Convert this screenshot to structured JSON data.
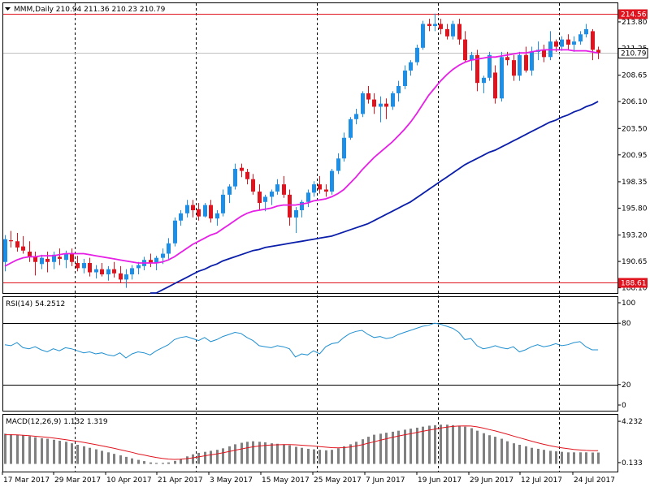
{
  "colors": {
    "background": "#ffffff",
    "frame": "#000000",
    "bull": "#1e8fe6",
    "bear": "#e0141e",
    "ma_fast": "#e61ee6",
    "ma_slow": "#0a1eaa",
    "hline": "#e0141e",
    "rsi": "#1e8fd0",
    "macd_hist": "#808080",
    "macd_signal": "#e0141e",
    "grid_dash": "#000000",
    "price_tag_bg": "#ffffff"
  },
  "chart_data": [
    {
      "type": "candlestick",
      "title": "MMM,Daily  210.94 211.36 210.23 210.79",
      "symbol": "MMM,Daily",
      "ohlc_header": "210.94 211.36 210.23 210.79",
      "ylim": [
        187.6,
        215.6
      ],
      "y_ticks": [
        "213.80",
        "211.25",
        "208.65",
        "206.10",
        "203.50",
        "200.95",
        "198.35",
        "195.80",
        "193.20",
        "190.65",
        "188.10"
      ],
      "y_tick_values": [
        213.8,
        211.25,
        208.65,
        206.1,
        203.5,
        200.95,
        198.35,
        195.8,
        193.2,
        190.65,
        188.1
      ],
      "hlines": [
        {
          "value": 214.56,
          "label": "214.56",
          "style": "red-box"
        },
        {
          "value": 188.61,
          "label": "188.61",
          "style": "red-box"
        }
      ],
      "current_price": {
        "value": 210.79,
        "label": "210.79"
      },
      "candles": [
        {
          "o": 190.6,
          "h": 193.2,
          "l": 189.7,
          "c": 192.8
        },
        {
          "o": 192.7,
          "h": 193.6,
          "l": 192.0,
          "c": 192.6
        },
        {
          "o": 192.6,
          "h": 193.4,
          "l": 191.6,
          "c": 192.0
        },
        {
          "o": 192.1,
          "h": 193.1,
          "l": 191.4,
          "c": 191.7
        },
        {
          "o": 191.6,
          "h": 192.6,
          "l": 190.6,
          "c": 191.1
        },
        {
          "o": 191.1,
          "h": 191.6,
          "l": 189.3,
          "c": 190.6
        },
        {
          "o": 190.4,
          "h": 191.3,
          "l": 189.9,
          "c": 191.0
        },
        {
          "o": 190.9,
          "h": 191.6,
          "l": 189.6,
          "c": 190.6
        },
        {
          "o": 190.6,
          "h": 191.6,
          "l": 189.9,
          "c": 191.3
        },
        {
          "o": 191.1,
          "h": 191.9,
          "l": 190.3,
          "c": 190.9
        },
        {
          "o": 190.8,
          "h": 191.7,
          "l": 190.0,
          "c": 191.4
        },
        {
          "o": 191.4,
          "h": 191.9,
          "l": 190.2,
          "c": 190.6
        },
        {
          "o": 190.5,
          "h": 191.2,
          "l": 189.7,
          "c": 190.0
        },
        {
          "o": 190.0,
          "h": 190.9,
          "l": 189.5,
          "c": 190.5
        },
        {
          "o": 190.5,
          "h": 191.0,
          "l": 189.2,
          "c": 189.6
        },
        {
          "o": 189.6,
          "h": 190.3,
          "l": 189.0,
          "c": 189.9
        },
        {
          "o": 189.9,
          "h": 190.5,
          "l": 189.2,
          "c": 189.4
        },
        {
          "o": 189.4,
          "h": 190.2,
          "l": 188.8,
          "c": 189.9
        },
        {
          "o": 189.9,
          "h": 190.6,
          "l": 189.1,
          "c": 189.5
        },
        {
          "o": 189.5,
          "h": 190.2,
          "l": 188.6,
          "c": 188.9
        },
        {
          "o": 188.9,
          "h": 189.9,
          "l": 188.1,
          "c": 189.4
        },
        {
          "o": 189.4,
          "h": 190.3,
          "l": 188.9,
          "c": 190.0
        },
        {
          "o": 190.0,
          "h": 190.6,
          "l": 189.4,
          "c": 190.3
        },
        {
          "o": 190.2,
          "h": 191.1,
          "l": 189.8,
          "c": 190.8
        },
        {
          "o": 190.8,
          "h": 191.4,
          "l": 190.1,
          "c": 190.5
        },
        {
          "o": 190.5,
          "h": 191.2,
          "l": 189.8,
          "c": 191.0
        },
        {
          "o": 191.0,
          "h": 191.9,
          "l": 190.4,
          "c": 191.4
        },
        {
          "o": 191.4,
          "h": 192.9,
          "l": 190.9,
          "c": 192.4
        },
        {
          "o": 192.4,
          "h": 194.9,
          "l": 192.1,
          "c": 194.6
        },
        {
          "o": 194.6,
          "h": 195.6,
          "l": 194.1,
          "c": 195.3
        },
        {
          "o": 195.3,
          "h": 196.6,
          "l": 194.9,
          "c": 196.1
        },
        {
          "o": 196.1,
          "h": 196.6,
          "l": 194.9,
          "c": 195.6
        },
        {
          "o": 195.7,
          "h": 196.3,
          "l": 194.6,
          "c": 195.0
        },
        {
          "o": 195.0,
          "h": 196.3,
          "l": 194.9,
          "c": 196.1
        },
        {
          "o": 196.1,
          "h": 196.6,
          "l": 194.4,
          "c": 194.8
        },
        {
          "o": 194.8,
          "h": 195.6,
          "l": 194.1,
          "c": 195.3
        },
        {
          "o": 195.3,
          "h": 197.6,
          "l": 195.0,
          "c": 197.1
        },
        {
          "o": 197.1,
          "h": 198.1,
          "l": 196.3,
          "c": 197.9
        },
        {
          "o": 197.9,
          "h": 200.1,
          "l": 197.6,
          "c": 199.6
        },
        {
          "o": 199.7,
          "h": 200.1,
          "l": 198.8,
          "c": 199.4
        },
        {
          "o": 199.3,
          "h": 199.6,
          "l": 198.1,
          "c": 198.6
        },
        {
          "o": 198.6,
          "h": 199.1,
          "l": 197.1,
          "c": 197.4
        },
        {
          "o": 197.4,
          "h": 198.1,
          "l": 195.6,
          "c": 196.3
        },
        {
          "o": 196.4,
          "h": 197.1,
          "l": 195.5,
          "c": 196.9
        },
        {
          "o": 196.9,
          "h": 197.6,
          "l": 196.1,
          "c": 197.4
        },
        {
          "o": 197.4,
          "h": 198.6,
          "l": 197.1,
          "c": 198.1
        },
        {
          "o": 198.1,
          "h": 198.9,
          "l": 196.8,
          "c": 197.1
        },
        {
          "o": 197.1,
          "h": 197.6,
          "l": 194.1,
          "c": 194.9
        },
        {
          "o": 194.9,
          "h": 195.9,
          "l": 193.4,
          "c": 195.6
        },
        {
          "o": 195.6,
          "h": 196.6,
          "l": 194.9,
          "c": 196.4
        },
        {
          "o": 196.4,
          "h": 197.6,
          "l": 195.9,
          "c": 197.3
        },
        {
          "o": 197.3,
          "h": 198.4,
          "l": 196.9,
          "c": 198.1
        },
        {
          "o": 198.1,
          "h": 198.9,
          "l": 197.2,
          "c": 197.6
        },
        {
          "o": 197.6,
          "h": 198.1,
          "l": 196.9,
          "c": 197.4
        },
        {
          "o": 197.4,
          "h": 199.6,
          "l": 197.1,
          "c": 199.4
        },
        {
          "o": 199.4,
          "h": 201.1,
          "l": 199.1,
          "c": 200.6
        },
        {
          "o": 200.6,
          "h": 203.1,
          "l": 200.3,
          "c": 202.6
        },
        {
          "o": 202.6,
          "h": 204.6,
          "l": 202.4,
          "c": 204.4
        },
        {
          "o": 204.4,
          "h": 205.4,
          "l": 203.9,
          "c": 204.9
        },
        {
          "o": 204.9,
          "h": 207.1,
          "l": 204.6,
          "c": 206.9
        },
        {
          "o": 206.9,
          "h": 207.6,
          "l": 205.9,
          "c": 206.3
        },
        {
          "o": 206.3,
          "h": 206.9,
          "l": 204.9,
          "c": 205.6
        },
        {
          "o": 205.6,
          "h": 206.6,
          "l": 204.1,
          "c": 205.9
        },
        {
          "o": 205.9,
          "h": 206.4,
          "l": 204.4,
          "c": 205.6
        },
        {
          "o": 205.6,
          "h": 207.1,
          "l": 205.3,
          "c": 206.9
        },
        {
          "o": 206.9,
          "h": 208.1,
          "l": 206.1,
          "c": 207.6
        },
        {
          "o": 207.6,
          "h": 209.6,
          "l": 207.3,
          "c": 209.1
        },
        {
          "o": 209.1,
          "h": 210.1,
          "l": 208.6,
          "c": 209.9
        },
        {
          "o": 209.9,
          "h": 211.6,
          "l": 209.6,
          "c": 211.3
        },
        {
          "o": 211.3,
          "h": 213.9,
          "l": 211.1,
          "c": 213.6
        },
        {
          "o": 213.6,
          "h": 214.1,
          "l": 212.9,
          "c": 213.4
        },
        {
          "o": 213.4,
          "h": 214.6,
          "l": 212.9,
          "c": 213.6
        },
        {
          "o": 213.6,
          "h": 214.1,
          "l": 212.6,
          "c": 213.1
        },
        {
          "o": 213.1,
          "h": 213.6,
          "l": 212.1,
          "c": 212.4
        },
        {
          "o": 212.4,
          "h": 213.9,
          "l": 212.1,
          "c": 213.6
        },
        {
          "o": 213.6,
          "h": 214.1,
          "l": 211.6,
          "c": 212.1
        },
        {
          "o": 212.1,
          "h": 212.9,
          "l": 209.9,
          "c": 210.1
        },
        {
          "o": 210.1,
          "h": 210.9,
          "l": 209.1,
          "c": 210.6
        },
        {
          "o": 210.6,
          "h": 211.1,
          "l": 207.1,
          "c": 207.9
        },
        {
          "o": 207.9,
          "h": 208.6,
          "l": 206.9,
          "c": 208.4
        },
        {
          "o": 208.4,
          "h": 210.9,
          "l": 208.1,
          "c": 210.6
        },
        {
          "o": 208.9,
          "h": 209.6,
          "l": 205.9,
          "c": 206.4
        },
        {
          "o": 206.4,
          "h": 210.9,
          "l": 206.1,
          "c": 210.4
        },
        {
          "o": 210.4,
          "h": 210.9,
          "l": 209.6,
          "c": 210.1
        },
        {
          "o": 210.1,
          "h": 210.6,
          "l": 208.1,
          "c": 208.6
        },
        {
          "o": 208.6,
          "h": 210.9,
          "l": 208.1,
          "c": 210.6
        },
        {
          "o": 210.6,
          "h": 211.4,
          "l": 208.9,
          "c": 209.1
        },
        {
          "o": 209.1,
          "h": 211.4,
          "l": 208.6,
          "c": 210.9
        },
        {
          "o": 210.9,
          "h": 211.9,
          "l": 210.1,
          "c": 211.1
        },
        {
          "o": 211.1,
          "h": 211.6,
          "l": 209.9,
          "c": 210.4
        },
        {
          "o": 210.4,
          "h": 212.9,
          "l": 210.1,
          "c": 211.9
        },
        {
          "o": 211.9,
          "h": 212.1,
          "l": 210.9,
          "c": 211.4
        },
        {
          "o": 211.4,
          "h": 212.4,
          "l": 211.0,
          "c": 212.1
        },
        {
          "o": 212.1,
          "h": 212.6,
          "l": 211.1,
          "c": 211.6
        },
        {
          "o": 211.6,
          "h": 212.4,
          "l": 210.9,
          "c": 211.9
        },
        {
          "o": 211.9,
          "h": 212.9,
          "l": 211.6,
          "c": 212.6
        },
        {
          "o": 212.6,
          "h": 213.6,
          "l": 212.3,
          "c": 213.1
        },
        {
          "o": 212.9,
          "h": 213.1,
          "l": 210.1,
          "c": 211.1
        },
        {
          "o": 211.1,
          "h": 211.4,
          "l": 210.2,
          "c": 210.8
        }
      ],
      "ma_fast": [
        190.2,
        190.5,
        190.8,
        191.0,
        191.1,
        191.1,
        191.2,
        191.2,
        191.2,
        191.3,
        191.4,
        191.4,
        191.4,
        191.4,
        191.3,
        191.2,
        191.1,
        191.0,
        190.9,
        190.8,
        190.7,
        190.6,
        190.5,
        190.5,
        190.5,
        190.5,
        190.6,
        190.8,
        191.1,
        191.5,
        191.9,
        192.3,
        192.6,
        192.9,
        193.2,
        193.4,
        193.8,
        194.2,
        194.6,
        195.0,
        195.3,
        195.5,
        195.6,
        195.7,
        195.8,
        196.0,
        196.1,
        196.1,
        196.1,
        196.2,
        196.3,
        196.5,
        196.6,
        196.7,
        196.9,
        197.2,
        197.6,
        198.2,
        198.8,
        199.5,
        200.1,
        200.7,
        201.2,
        201.7,
        202.2,
        202.8,
        203.4,
        204.1,
        204.9,
        205.8,
        206.7,
        207.4,
        208.1,
        208.7,
        209.2,
        209.6,
        209.9,
        210.1,
        210.2,
        210.3,
        210.4,
        210.4,
        210.5,
        210.6,
        210.7,
        210.8,
        210.8,
        210.9,
        211.0,
        211.1,
        211.1,
        211.1,
        211.1,
        211.1,
        211.0,
        211.0,
        211.0,
        210.9,
        210.8
      ],
      "ma_slow": [
        null,
        null,
        null,
        null,
        null,
        null,
        null,
        null,
        null,
        null,
        null,
        null,
        null,
        null,
        null,
        null,
        null,
        null,
        null,
        null,
        null,
        null,
        null,
        null,
        187.3,
        187.6,
        187.9,
        188.2,
        188.5,
        188.8,
        189.1,
        189.4,
        189.7,
        189.9,
        190.2,
        190.4,
        190.7,
        190.9,
        191.1,
        191.3,
        191.5,
        191.7,
        191.8,
        192.0,
        192.1,
        192.2,
        192.3,
        192.4,
        192.5,
        192.6,
        192.7,
        192.8,
        192.9,
        193.0,
        193.1,
        193.3,
        193.5,
        193.7,
        193.9,
        194.1,
        194.3,
        194.6,
        194.9,
        195.2,
        195.5,
        195.8,
        196.1,
        196.4,
        196.8,
        197.2,
        197.6,
        198.0,
        198.4,
        198.8,
        199.2,
        199.6,
        200.0,
        200.3,
        200.6,
        200.9,
        201.2,
        201.4,
        201.7,
        202.0,
        202.3,
        202.6,
        202.9,
        203.2,
        203.5,
        203.8,
        204.1,
        204.3,
        204.6,
        204.8,
        205.1,
        205.3,
        205.6,
        205.8,
        206.1
      ]
    },
    {
      "type": "line",
      "title": "RSI(14) 54.2512",
      "ylim": [
        0,
        100
      ],
      "y_ticks": [
        "100",
        "80",
        "20",
        "0"
      ],
      "y_tick_values": [
        100,
        80,
        20,
        0
      ],
      "levels": [
        80,
        20
      ],
      "values": [
        59,
        58,
        61,
        56,
        55,
        57,
        54,
        52,
        55,
        53,
        56,
        55,
        53,
        51,
        52,
        50,
        51,
        49,
        48,
        51,
        46,
        50,
        52,
        51,
        49,
        53,
        56,
        59,
        64,
        66,
        67,
        65,
        63,
        66,
        62,
        64,
        67,
        69,
        71,
        70,
        66,
        63,
        58,
        57,
        56,
        58,
        57,
        55,
        47,
        50,
        49,
        53,
        50,
        57,
        60,
        61,
        66,
        70,
        72,
        73,
        69,
        66,
        67,
        65,
        66,
        69,
        71,
        73,
        75,
        77,
        78,
        80,
        79,
        77,
        75,
        71,
        64,
        65,
        58,
        55,
        56,
        58,
        56,
        55,
        57,
        52,
        54,
        57,
        59,
        57,
        58,
        60,
        58,
        59,
        61,
        62,
        57,
        54,
        54
      ]
    },
    {
      "type": "bar+line",
      "title": "MACD(12,26,9) 1.132 1.319",
      "ylim": [
        -0.6,
        4.4
      ],
      "y_ticks": [
        "4.232",
        "0.133"
      ],
      "y_tick_values": [
        4.232,
        0.133
      ],
      "histogram": [
        3.0,
        2.95,
        2.9,
        2.85,
        2.75,
        2.65,
        2.55,
        2.5,
        2.4,
        2.3,
        2.2,
        2.05,
        1.9,
        1.75,
        1.6,
        1.45,
        1.3,
        1.15,
        1.0,
        0.85,
        0.7,
        0.55,
        0.4,
        0.28,
        0.15,
        0.1,
        0.1,
        0.15,
        0.3,
        0.5,
        0.75,
        0.95,
        1.1,
        1.2,
        1.3,
        1.4,
        1.55,
        1.75,
        1.95,
        2.1,
        2.2,
        2.25,
        2.2,
        2.15,
        2.05,
        2.0,
        1.95,
        1.85,
        1.7,
        1.6,
        1.5,
        1.45,
        1.4,
        1.35,
        1.4,
        1.55,
        1.75,
        1.95,
        2.2,
        2.45,
        2.7,
        2.9,
        3.0,
        3.1,
        3.2,
        3.3,
        3.4,
        3.5,
        3.6,
        3.7,
        3.8,
        3.85,
        3.9,
        3.9,
        3.85,
        3.8,
        3.7,
        3.55,
        3.3,
        3.05,
        2.85,
        2.7,
        2.5,
        2.25,
        2.05,
        1.9,
        1.75,
        1.6,
        1.5,
        1.4,
        1.3,
        1.25,
        1.2,
        1.15,
        1.15,
        1.15,
        1.15,
        1.13,
        1.13
      ],
      "signal": [
        2.9,
        2.9,
        2.88,
        2.85,
        2.8,
        2.75,
        2.7,
        2.65,
        2.58,
        2.5,
        2.42,
        2.33,
        2.24,
        2.14,
        2.03,
        1.92,
        1.8,
        1.68,
        1.55,
        1.42,
        1.29,
        1.15,
        1.0,
        0.88,
        0.75,
        0.64,
        0.55,
        0.48,
        0.45,
        0.47,
        0.52,
        0.6,
        0.7,
        0.8,
        0.9,
        1.0,
        1.1,
        1.22,
        1.35,
        1.48,
        1.6,
        1.7,
        1.78,
        1.84,
        1.88,
        1.9,
        1.92,
        1.92,
        1.9,
        1.86,
        1.82,
        1.78,
        1.72,
        1.67,
        1.62,
        1.6,
        1.62,
        1.68,
        1.78,
        1.9,
        2.05,
        2.2,
        2.35,
        2.5,
        2.63,
        2.76,
        2.88,
        3.0,
        3.12,
        3.24,
        3.35,
        3.46,
        3.56,
        3.65,
        3.72,
        3.76,
        3.78,
        3.76,
        3.68,
        3.56,
        3.42,
        3.28,
        3.12,
        2.95,
        2.77,
        2.6,
        2.43,
        2.26,
        2.1,
        1.95,
        1.82,
        1.7,
        1.6,
        1.51,
        1.43,
        1.38,
        1.34,
        1.32,
        1.32
      ]
    }
  ],
  "x_labels": [
    "17 Mar 2017",
    "29 Mar 2017",
    "10 Apr 2017",
    "21 Apr 2017",
    "3 May 2017",
    "15 May 2017",
    "25 May 2017",
    "7 Jun 2017",
    "19 Jun 2017",
    "29 Jun 2017",
    "12 Jul 2017",
    "24 Jul 2017"
  ]
}
